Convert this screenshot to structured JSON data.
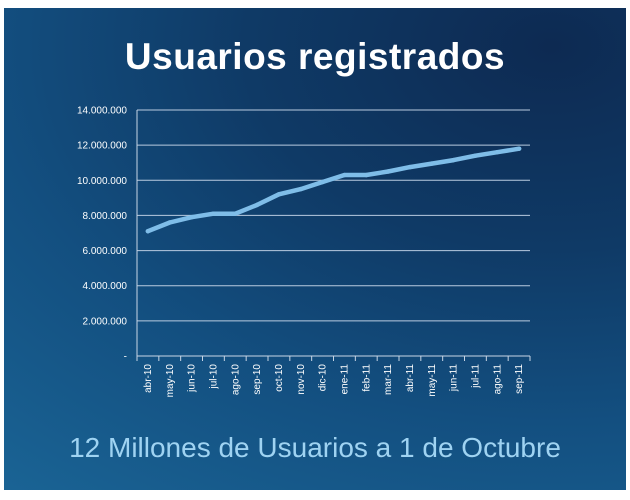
{
  "title": "Usuarios registrados",
  "subtitle": "12 Millones de Usuarios a 1 de Octubre",
  "chart_data": {
    "type": "line",
    "categories": [
      "abr-10",
      "may-10",
      "jun-10",
      "jul-10",
      "ago-10",
      "sep-10",
      "oct-10",
      "nov-10",
      "dic-10",
      "ene-11",
      "feb-11",
      "mar-11",
      "abr-11",
      "may-11",
      "jun-11",
      "jul-11",
      "ago-11",
      "sep-11"
    ],
    "series": [
      {
        "values": [
          7100000,
          7600000,
          7900000,
          8100000,
          8100000,
          8600000,
          9200000,
          9500000,
          9900000,
          10300000,
          10300000,
          10500000,
          10750000,
          10950000,
          11150000,
          11400000,
          11600000,
          11800000
        ]
      }
    ],
    "yticks": [
      "-",
      "2.000.000",
      "4.000.000",
      "6.000.000",
      "8.000.000",
      "10.000.000",
      "12.000.000",
      "14.000.000"
    ],
    "ylim": [
      0,
      14000000
    ],
    "grid": true,
    "line_color": "#7fbde8"
  }
}
